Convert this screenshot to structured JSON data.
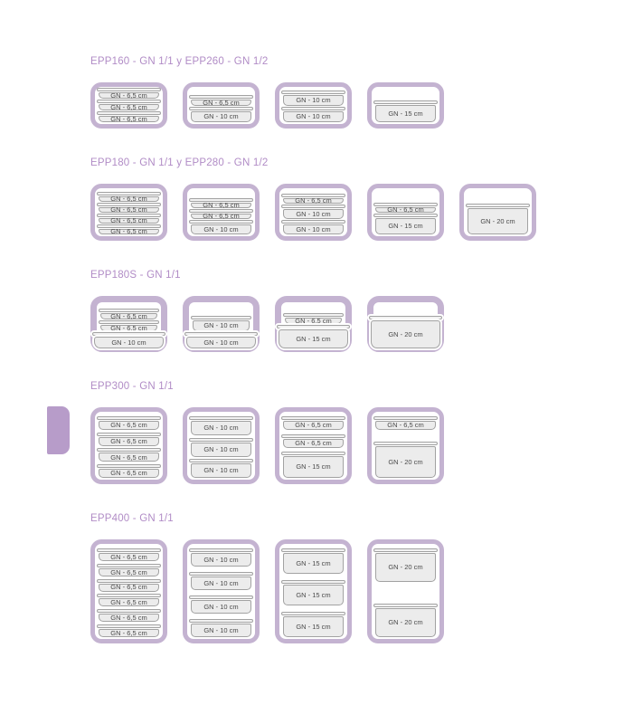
{
  "colors": {
    "accent_purple": "#b18cc6",
    "frame_purple": "#c4b3d1",
    "tab_purple": "#b79cc9",
    "container_fill": "#ececec",
    "container_lid_fill": "#f2f2f2",
    "container_border": "#a2a2a2",
    "label_text": "#4a4a4a"
  },
  "sections": [
    {
      "id": "EPP160",
      "title": "EPP160 - GN 1/1 y EPP260 - GN 1/2",
      "boxes": [
        {
          "containers": [
            {
              "label": "GN - 6,5 cm",
              "cm": "6.5"
            },
            {
              "label": "GN - 6,5 cm",
              "cm": "6.5"
            },
            {
              "label": "GN - 6,5 cm",
              "cm": "6.5"
            }
          ]
        },
        {
          "containers": [
            {
              "label": "GN - 6,5 cm",
              "cm": "6.5"
            },
            {
              "label": "GN - 10 cm",
              "cm": "10"
            }
          ]
        },
        {
          "containers": [
            {
              "label": "GN - 10 cm",
              "cm": "10"
            },
            {
              "label": "GN - 10 cm",
              "cm": "10"
            }
          ]
        },
        {
          "containers": [
            {
              "label": "GN - 15 cm",
              "cm": "15"
            }
          ]
        }
      ]
    },
    {
      "id": "EPP180",
      "title": "EPP180 - GN 1/1 y EPP280 - GN 1/2",
      "boxes": [
        {
          "containers": [
            {
              "label": "GN - 6,5 cm",
              "cm": "6.5"
            },
            {
              "label": "GN - 6,5 cm",
              "cm": "6.5"
            },
            {
              "label": "GN - 6,5 cm",
              "cm": "6.5"
            },
            {
              "label": "GN - 6,5 cm",
              "cm": "6.5"
            }
          ]
        },
        {
          "containers": [
            {
              "label": "GN - 6,5 cm",
              "cm": "6.5"
            },
            {
              "label": "GN - 6,5 cm",
              "cm": "6.5"
            },
            {
              "label": "GN - 10 cm",
              "cm": "10"
            }
          ]
        },
        {
          "containers": [
            {
              "label": "GN - 6,5 cm",
              "cm": "6.5"
            },
            {
              "label": "GN - 10 cm",
              "cm": "10"
            },
            {
              "label": "GN - 10 cm",
              "cm": "10"
            }
          ]
        },
        {
          "containers": [
            {
              "label": "GN - 6,5 cm",
              "cm": "6.5"
            },
            {
              "label": "GN - 15 cm",
              "cm": "15"
            }
          ]
        },
        {
          "containers": [
            {
              "label": "GN - 20 cm",
              "cm": "20"
            }
          ]
        }
      ]
    },
    {
      "id": "EPP180S",
      "title": "EPP180S - GN 1/1",
      "boxes": [
        {
          "containers": [
            {
              "label": "GN - 6,5 cm",
              "cm": "6.5"
            },
            {
              "label": "GN - 6,5 cm",
              "cm": "6.5"
            },
            {
              "label": "GN - 10 cm",
              "cm": "10",
              "protrudes": true
            }
          ]
        },
        {
          "containers": [
            {
              "label": "GN - 10 cm",
              "cm": "10"
            },
            {
              "label": "GN - 10 cm",
              "cm": "10",
              "protrudes": true
            }
          ]
        },
        {
          "containers": [
            {
              "label": "GN - 6,5 cm",
              "cm": "6.5"
            },
            {
              "label": "GN - 15 cm",
              "cm": "15",
              "protrudes": true
            }
          ]
        },
        {
          "containers": [
            {
              "label": "GN - 20 cm",
              "cm": "20",
              "protrudes": true
            }
          ]
        }
      ]
    },
    {
      "id": "EPP300",
      "title": "EPP300 - GN 1/1",
      "boxes": [
        {
          "containers": [
            {
              "label": "GN - 6,5 cm",
              "cm": "6.5"
            },
            {
              "label": "GN - 6,5 cm",
              "cm": "6.5"
            },
            {
              "label": "GN - 6,5 cm",
              "cm": "6.5"
            },
            {
              "label": "GN - 6,5 cm",
              "cm": "6.5"
            }
          ]
        },
        {
          "containers": [
            {
              "label": "GN - 10 cm",
              "cm": "10"
            },
            {
              "label": "GN - 10 cm",
              "cm": "10"
            },
            {
              "label": "GN - 10 cm",
              "cm": "10"
            }
          ]
        },
        {
          "containers": [
            {
              "label": "GN - 6,5 cm",
              "cm": "6.5"
            },
            {
              "label": "GN - 6,5 cm",
              "cm": "6.5"
            },
            {
              "label": "GN - 15 cm",
              "cm": "15"
            }
          ]
        },
        {
          "containers": [
            {
              "label": "GN - 6,5 cm",
              "cm": "6.5"
            },
            {
              "label": "GN - 20 cm",
              "cm": "20"
            }
          ]
        }
      ]
    },
    {
      "id": "EPP400",
      "title": "EPP400 - GN 1/1",
      "boxes": [
        {
          "containers": [
            {
              "label": "GN - 6,5 cm",
              "cm": "6.5"
            },
            {
              "label": "GN - 6,5 cm",
              "cm": "6.5"
            },
            {
              "label": "GN - 6,5 cm",
              "cm": "6.5"
            },
            {
              "label": "GN - 6,5 cm",
              "cm": "6.5"
            },
            {
              "label": "GN - 6,5 cm",
              "cm": "6.5"
            },
            {
              "label": "GN - 6,5 cm",
              "cm": "6.5"
            }
          ]
        },
        {
          "containers": [
            {
              "label": "GN - 10 cm",
              "cm": "10"
            },
            {
              "label": "GN - 10 cm",
              "cm": "10"
            },
            {
              "label": "GN - 10 cm",
              "cm": "10"
            },
            {
              "label": "GN - 10 cm",
              "cm": "10"
            }
          ]
        },
        {
          "containers": [
            {
              "label": "GN - 15 cm",
              "cm": "15"
            },
            {
              "label": "GN - 15 cm",
              "cm": "15"
            },
            {
              "label": "GN - 15 cm",
              "cm": "15"
            }
          ]
        },
        {
          "containers": [
            {
              "label": "GN - 20 cm",
              "cm": "20"
            },
            {
              "label": "GN - 20 cm",
              "cm": "20"
            }
          ]
        }
      ]
    }
  ]
}
